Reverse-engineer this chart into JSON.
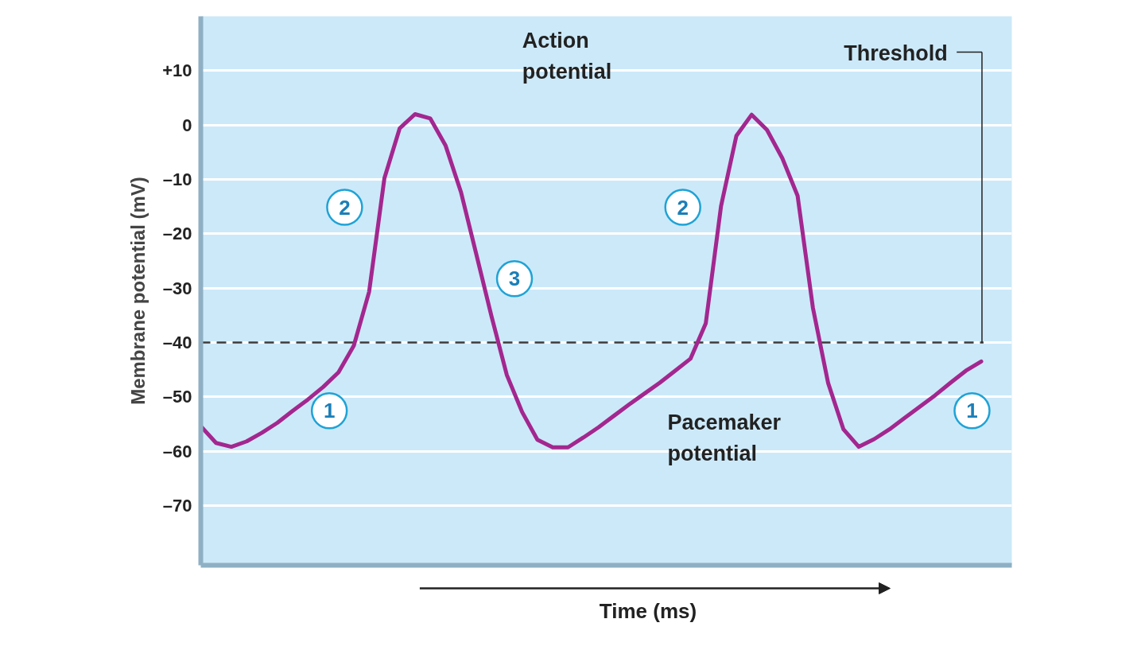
{
  "chart_data": {
    "type": "line",
    "xlabel": "Time (ms)",
    "ylabel": "Membrane potential (mV)",
    "categories": [
      null,
      null,
      null,
      null,
      null,
      null,
      null,
      null,
      null,
      null,
      null,
      null,
      null,
      null,
      null,
      null,
      null,
      null,
      null,
      null,
      null,
      null,
      null,
      null,
      null,
      null,
      null,
      null,
      null,
      null,
      null,
      null,
      null,
      null,
      null,
      null,
      null,
      null,
      null,
      null,
      null,
      null,
      null,
      null,
      null,
      null,
      null,
      null,
      null,
      null,
      null,
      null
    ],
    "series": [
      {
        "color": "#a3278f",
        "values": [
          -55.4,
          -58.5,
          -59.2,
          -58.2,
          -56.6,
          -54.8,
          -52.6,
          -50.5,
          -48.2,
          -45.5,
          -40.6,
          -30.7,
          -9.8,
          -0.6,
          2.0,
          1.2,
          -3.8,
          -12.3,
          -23.7,
          -35.2,
          -46,
          -52.8,
          -57.9,
          -59.3,
          -59.3,
          -57.5,
          -55.6,
          -53.5,
          -51.4,
          -49.4,
          -47.4,
          -45.2,
          -43,
          -36.5,
          -14.9,
          -2,
          1.9,
          -0.9,
          -6.1,
          -13,
          -33.6,
          -47.5,
          -56,
          -59.2,
          -57.8,
          -56,
          -53.9,
          -51.8,
          -49.7,
          -47.4,
          -45.2,
          -43.5
        ]
      }
    ],
    "ylim": [
      -81,
      20
    ],
    "yticks": [
      {
        "value": 10,
        "label": "+10"
      },
      0,
      {
        "value": -10,
        "label": "–10"
      },
      {
        "value": -20,
        "label": "–20"
      },
      {
        "value": -30,
        "label": "–30"
      },
      {
        "value": -40,
        "label": "–40"
      },
      {
        "value": -50,
        "label": "–50"
      },
      {
        "value": -60,
        "label": "–60"
      },
      {
        "value": -70,
        "label": "–70"
      }
    ],
    "grid": "y",
    "tick_labels": "y",
    "ref_lines": [
      {
        "axis": "y",
        "value": -40,
        "label": "Threshold",
        "color": "#3a3a3a",
        "line_style": "dashed"
      }
    ],
    "annotations": [
      "Action potential",
      "Pacemaker potential",
      "1",
      "2",
      "3",
      "2",
      "1"
    ]
  }
}
